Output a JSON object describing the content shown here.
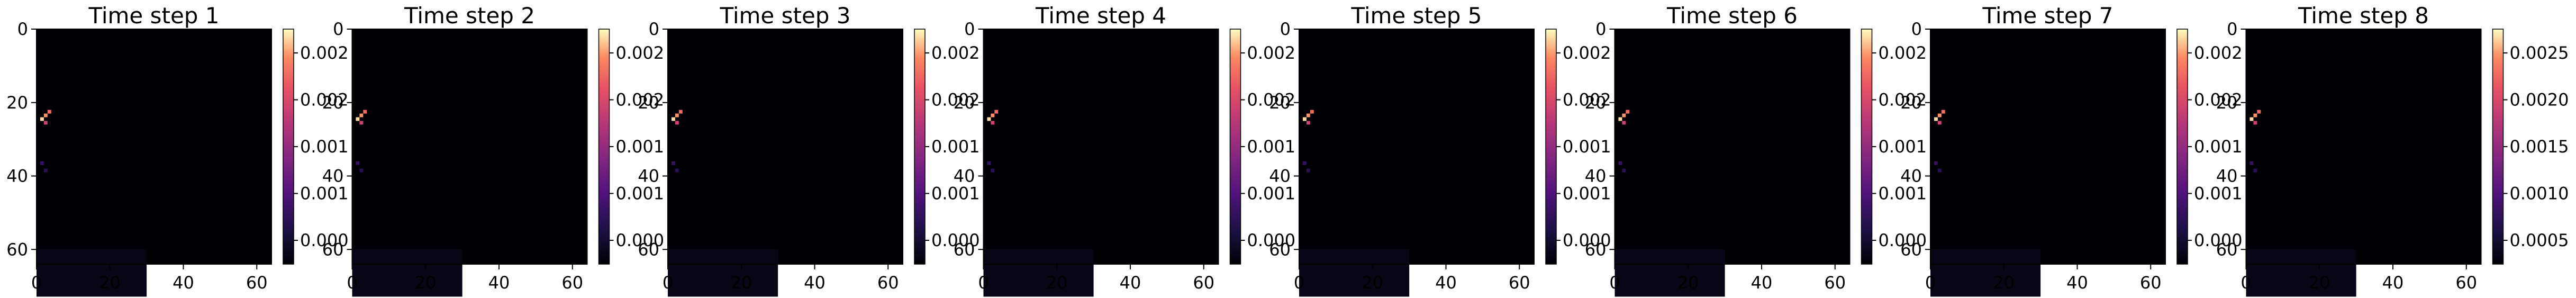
{
  "chart_data": [
    {
      "type": "heatmap",
      "title": "Time step 1",
      "x_ticks": [
        "0",
        "20",
        "40",
        "60"
      ],
      "y_ticks": [
        "0",
        "20",
        "40",
        "60"
      ],
      "xlim": [
        0,
        64
      ],
      "ylim": [
        64,
        0
      ],
      "colormap": "magma",
      "colorbar_ticks": [
        "0.000",
        "0.001",
        "0.001",
        "0.002",
        "0.002"
      ],
      "hotspots": [
        {
          "x": 1.5,
          "y": 24.5,
          "value": 0.0026
        },
        {
          "x": 2.5,
          "y": 23.5,
          "value": 0.0024
        },
        {
          "x": 3.5,
          "y": 22.5,
          "value": 0.0022
        },
        {
          "x": 2.5,
          "y": 25.5,
          "value": 0.0018
        },
        {
          "x": 1.5,
          "y": 36.5,
          "value": 0.0006
        },
        {
          "x": 2.5,
          "y": 38.5,
          "value": 0.0005
        }
      ]
    },
    {
      "type": "heatmap",
      "title": "Time step 2",
      "x_ticks": [
        "0",
        "20",
        "40",
        "60"
      ],
      "y_ticks": [
        "0",
        "20",
        "40",
        "60"
      ],
      "xlim": [
        0,
        64
      ],
      "ylim": [
        64,
        0
      ],
      "colormap": "magma",
      "colorbar_ticks": [
        "0.000",
        "0.001",
        "0.001",
        "0.002",
        "0.002"
      ],
      "hotspots": [
        {
          "x": 1.5,
          "y": 24.5,
          "value": 0.0026
        },
        {
          "x": 2.5,
          "y": 23.5,
          "value": 0.0024
        },
        {
          "x": 3.5,
          "y": 22.5,
          "value": 0.0022
        },
        {
          "x": 2.5,
          "y": 25.5,
          "value": 0.0018
        },
        {
          "x": 1.5,
          "y": 36.5,
          "value": 0.0006
        },
        {
          "x": 2.5,
          "y": 38.5,
          "value": 0.0005
        }
      ]
    },
    {
      "type": "heatmap",
      "title": "Time step 3",
      "x_ticks": [
        "0",
        "20",
        "40",
        "60"
      ],
      "y_ticks": [
        "0",
        "20",
        "40",
        "60"
      ],
      "xlim": [
        0,
        64
      ],
      "ylim": [
        64,
        0
      ],
      "colormap": "magma",
      "colorbar_ticks": [
        "0.000",
        "0.001",
        "0.001",
        "0.002",
        "0.002"
      ],
      "hotspots": [
        {
          "x": 1.5,
          "y": 24.5,
          "value": 0.0026
        },
        {
          "x": 2.5,
          "y": 23.5,
          "value": 0.0024
        },
        {
          "x": 3.5,
          "y": 22.5,
          "value": 0.0022
        },
        {
          "x": 2.5,
          "y": 25.5,
          "value": 0.0018
        },
        {
          "x": 1.5,
          "y": 36.5,
          "value": 0.0006
        },
        {
          "x": 2.5,
          "y": 38.5,
          "value": 0.0005
        }
      ]
    },
    {
      "type": "heatmap",
      "title": "Time step 4",
      "x_ticks": [
        "0",
        "20",
        "40",
        "60"
      ],
      "y_ticks": [
        "0",
        "20",
        "40",
        "60"
      ],
      "xlim": [
        0,
        64
      ],
      "ylim": [
        64,
        0
      ],
      "colormap": "magma",
      "colorbar_ticks": [
        "0.000",
        "0.001",
        "0.001",
        "0.002",
        "0.002"
      ],
      "hotspots": [
        {
          "x": 1.5,
          "y": 24.5,
          "value": 0.0026
        },
        {
          "x": 2.5,
          "y": 23.5,
          "value": 0.0024
        },
        {
          "x": 3.5,
          "y": 22.5,
          "value": 0.0022
        },
        {
          "x": 2.5,
          "y": 25.5,
          "value": 0.0018
        },
        {
          "x": 1.5,
          "y": 36.5,
          "value": 0.0006
        },
        {
          "x": 2.5,
          "y": 38.5,
          "value": 0.0005
        }
      ]
    },
    {
      "type": "heatmap",
      "title": "Time step 5",
      "x_ticks": [
        "0",
        "20",
        "40",
        "60"
      ],
      "y_ticks": [
        "0",
        "20",
        "40",
        "60"
      ],
      "xlim": [
        0,
        64
      ],
      "ylim": [
        64,
        0
      ],
      "colormap": "magma",
      "colorbar_ticks": [
        "0.000",
        "0.001",
        "0.001",
        "0.002",
        "0.002"
      ],
      "hotspots": [
        {
          "x": 1.5,
          "y": 24.5,
          "value": 0.0026
        },
        {
          "x": 2.5,
          "y": 23.5,
          "value": 0.0024
        },
        {
          "x": 3.5,
          "y": 22.5,
          "value": 0.0022
        },
        {
          "x": 2.5,
          "y": 25.5,
          "value": 0.0018
        },
        {
          "x": 1.5,
          "y": 36.5,
          "value": 0.0006
        },
        {
          "x": 2.5,
          "y": 38.5,
          "value": 0.0005
        }
      ]
    },
    {
      "type": "heatmap",
      "title": "Time step 6",
      "x_ticks": [
        "0",
        "20",
        "40",
        "60"
      ],
      "y_ticks": [
        "0",
        "20",
        "40",
        "60"
      ],
      "xlim": [
        0,
        64
      ],
      "ylim": [
        64,
        0
      ],
      "colormap": "magma",
      "colorbar_ticks": [
        "0.000",
        "0.001",
        "0.001",
        "0.002",
        "0.002"
      ],
      "hotspots": [
        {
          "x": 1.5,
          "y": 24.5,
          "value": 0.0026
        },
        {
          "x": 2.5,
          "y": 23.5,
          "value": 0.0024
        },
        {
          "x": 3.5,
          "y": 22.5,
          "value": 0.0022
        },
        {
          "x": 2.5,
          "y": 25.5,
          "value": 0.0018
        },
        {
          "x": 1.5,
          "y": 36.5,
          "value": 0.0006
        },
        {
          "x": 2.5,
          "y": 38.5,
          "value": 0.0005
        }
      ]
    },
    {
      "type": "heatmap",
      "title": "Time step 7",
      "x_ticks": [
        "0",
        "20",
        "40",
        "60"
      ],
      "y_ticks": [
        "0",
        "20",
        "40",
        "60"
      ],
      "xlim": [
        0,
        64
      ],
      "ylim": [
        64,
        0
      ],
      "colormap": "magma",
      "colorbar_ticks": [
        "0.000",
        "0.001",
        "0.001",
        "0.002",
        "0.002"
      ],
      "hotspots": [
        {
          "x": 1.5,
          "y": 24.5,
          "value": 0.0026
        },
        {
          "x": 2.5,
          "y": 23.5,
          "value": 0.0024
        },
        {
          "x": 3.5,
          "y": 22.5,
          "value": 0.0022
        },
        {
          "x": 2.5,
          "y": 25.5,
          "value": 0.0018
        },
        {
          "x": 1.5,
          "y": 36.5,
          "value": 0.0006
        },
        {
          "x": 2.5,
          "y": 38.5,
          "value": 0.0005
        }
      ]
    },
    {
      "type": "heatmap",
      "title": "Time step 8",
      "x_ticks": [
        "0",
        "20",
        "40",
        "60"
      ],
      "y_ticks": [
        "0",
        "20",
        "40",
        "60"
      ],
      "xlim": [
        0,
        64
      ],
      "ylim": [
        64,
        0
      ],
      "colormap": "magma",
      "colorbar_ticks": [
        "0.0005",
        "0.0010",
        "0.0015",
        "0.0020",
        "0.0025"
      ],
      "hotspots": [
        {
          "x": 1.5,
          "y": 24.5,
          "value": 0.0026
        },
        {
          "x": 2.5,
          "y": 23.5,
          "value": 0.0024
        },
        {
          "x": 3.5,
          "y": 22.5,
          "value": 0.0022
        },
        {
          "x": 2.5,
          "y": 25.5,
          "value": 0.0018
        },
        {
          "x": 1.5,
          "y": 36.5,
          "value": 0.0006
        },
        {
          "x": 2.5,
          "y": 38.5,
          "value": 0.0005
        }
      ]
    }
  ]
}
